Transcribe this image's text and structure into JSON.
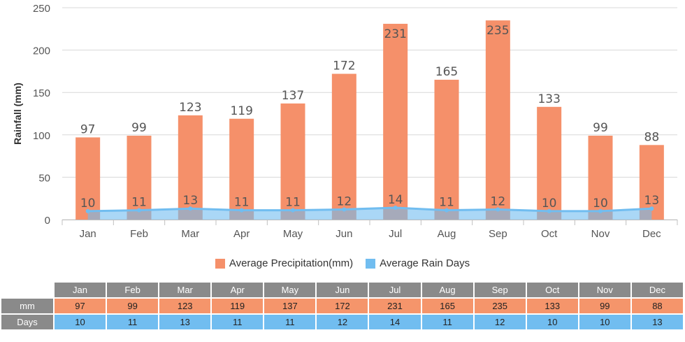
{
  "chart_data": {
    "type": "bar",
    "categories": [
      "Jan",
      "Feb",
      "Mar",
      "Apr",
      "May",
      "Jun",
      "Jul",
      "Aug",
      "Sep",
      "Oct",
      "Nov",
      "Dec"
    ],
    "series": [
      {
        "name": "Average Precipitation(mm)",
        "type": "bar",
        "values": [
          97,
          99,
          123,
          119,
          137,
          172,
          231,
          165,
          235,
          133,
          99,
          88
        ],
        "color": "#f5906a"
      },
      {
        "name": "Average Rain Days",
        "type": "area",
        "values": [
          10,
          11,
          13,
          11,
          11,
          12,
          14,
          11,
          12,
          10,
          10,
          13
        ],
        "color": "#71bdf0"
      }
    ],
    "ylabel": "Rainfall (mm)",
    "xlabel": "",
    "ylim": [
      0,
      250
    ],
    "yticks": [
      0,
      50,
      100,
      150,
      200,
      250
    ],
    "grid": true,
    "legend_position": "bottom"
  },
  "legend": {
    "precip_label": "Average Precipitation(mm)",
    "days_label": "Average Rain Days",
    "precip_color": "#f5906a",
    "days_color": "#71bdf0"
  },
  "table": {
    "months": [
      "Jan",
      "Feb",
      "Mar",
      "Apr",
      "May",
      "Jun",
      "Jul",
      "Aug",
      "Sep",
      "Oct",
      "Nov",
      "Dec"
    ],
    "mm_label": "mm",
    "days_label": "Days",
    "mm": [
      "97",
      "99",
      "123",
      "119",
      "137",
      "172",
      "231",
      "165",
      "235",
      "133",
      "99",
      "88"
    ],
    "days": [
      "10",
      "11",
      "13",
      "11",
      "11",
      "12",
      "14",
      "11",
      "12",
      "10",
      "10",
      "13"
    ]
  }
}
